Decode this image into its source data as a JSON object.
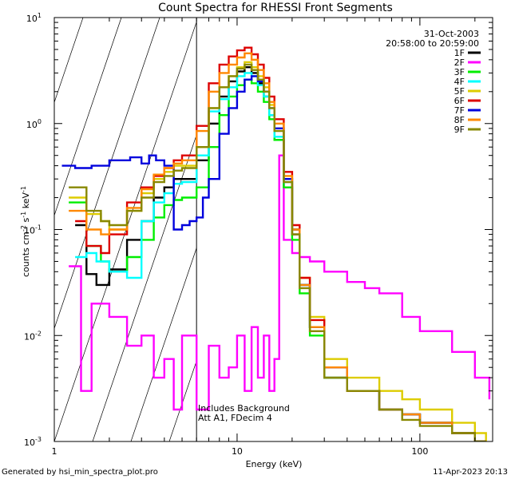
{
  "chart_data": {
    "type": "line",
    "title": "Count Spectra for RHESSI Front Segments",
    "xlabel": "Energy (keV)",
    "ylabel": "counts cm",
    "ylabel_exp1": "-2",
    "ylabel_mid": " s",
    "ylabel_exp2": "-1",
    "ylabel_end": " keV",
    "ylabel_exp3": "-1",
    "xscale": "log",
    "yscale": "log",
    "xlim": [
      1,
      250
    ],
    "ylim": [
      0.001,
      10
    ],
    "x_ticks": [
      {
        "value": 1,
        "label": "1"
      },
      {
        "value": 10,
        "label": "10"
      },
      {
        "value": 100,
        "label": "100"
      }
    ],
    "y_ticks": [
      {
        "value": 10,
        "base": "10",
        "exp": "1"
      },
      {
        "value": 1,
        "base": "10",
        "exp": "0"
      },
      {
        "value": 0.1,
        "base": "10",
        "exp": "-1"
      },
      {
        "value": 0.01,
        "base": "10",
        "exp": "-2"
      },
      {
        "value": 0.001,
        "base": "10",
        "exp": "-3"
      }
    ],
    "hatched_region": {
      "x_min": 1,
      "x_max": 6
    },
    "date": "31-Oct-2003",
    "time_range": "20:58:00 to 20:59:00",
    "annotations": [
      "Includes Background",
      "Att A1, FDecim 4"
    ],
    "legend_position": "top-right",
    "series": [
      {
        "name": "1F",
        "color": "#000000",
        "x": [
          1.3,
          1.5,
          1.7,
          2,
          2.5,
          3,
          3.5,
          4,
          4.5,
          5,
          6,
          7,
          8,
          9,
          10,
          11,
          12,
          13,
          14,
          15,
          16,
          18,
          20,
          22,
          25,
          30,
          40,
          60,
          80,
          100,
          150,
          200,
          230
        ],
        "y": [
          0.11,
          0.038,
          0.03,
          0.042,
          0.08,
          0.12,
          0.2,
          0.25,
          0.3,
          0.3,
          0.45,
          1.0,
          1.8,
          2.5,
          3.1,
          3.4,
          3.0,
          2.4,
          1.8,
          1.2,
          0.7,
          0.25,
          0.09,
          0.03,
          0.012,
          0.004,
          0.003,
          0.002,
          0.0018,
          0.0015,
          0.0012,
          0.001,
          0.001
        ]
      },
      {
        "name": "2F",
        "color": "#ff00ff",
        "x": [
          1.2,
          1.4,
          1.6,
          2,
          2.5,
          3,
          3.5,
          4,
          4.5,
          5,
          6,
          7,
          8,
          9,
          10,
          11,
          12,
          13,
          14,
          15,
          16,
          17,
          18,
          20,
          22,
          25,
          30,
          40,
          50,
          60,
          80,
          100,
          150,
          200,
          240
        ],
        "y": [
          0.045,
          0.003,
          0.02,
          0.015,
          0.008,
          0.01,
          0.004,
          0.006,
          0.002,
          0.01,
          0.002,
          0.008,
          0.004,
          0.005,
          0.01,
          0.003,
          0.012,
          0.004,
          0.01,
          0.003,
          0.006,
          0.5,
          0.08,
          0.06,
          0.055,
          0.05,
          0.04,
          0.032,
          0.028,
          0.025,
          0.015,
          0.011,
          0.007,
          0.004,
          0.0025
        ]
      },
      {
        "name": "3F",
        "color": "#00ee00",
        "x": [
          1.2,
          1.5,
          1.8,
          2,
          2.5,
          3,
          3.5,
          4,
          4.5,
          5,
          6,
          7,
          8,
          9,
          10,
          11,
          12,
          13,
          14,
          15,
          16,
          18,
          20,
          22,
          25,
          30,
          40,
          60,
          80,
          100,
          150,
          200,
          230
        ],
        "y": [
          0.18,
          0.07,
          0.05,
          0.04,
          0.055,
          0.08,
          0.13,
          0.17,
          0.19,
          0.2,
          0.25,
          0.6,
          1.2,
          1.8,
          2.3,
          2.6,
          2.4,
          2.0,
          1.6,
          1.1,
          0.7,
          0.25,
          0.08,
          0.025,
          0.01,
          0.004,
          0.003,
          0.002,
          0.0018,
          0.0015,
          0.0012,
          0.001,
          0.001
        ]
      },
      {
        "name": "4F",
        "color": "#00ffff",
        "x": [
          1.3,
          1.5,
          1.7,
          2,
          2.5,
          3,
          3.5,
          4,
          4.5,
          5,
          6,
          7,
          8,
          9,
          10,
          11,
          12,
          13,
          14,
          15,
          16,
          18,
          20,
          22,
          25,
          30,
          40,
          60,
          80,
          100,
          150,
          200,
          230
        ],
        "y": [
          0.055,
          0.06,
          0.05,
          0.04,
          0.035,
          0.12,
          0.18,
          0.22,
          0.27,
          0.28,
          0.5,
          1.3,
          1.7,
          2.2,
          2.8,
          3.0,
          2.8,
          2.3,
          1.8,
          1.2,
          0.75,
          0.28,
          0.1,
          0.03,
          0.012,
          0.005,
          0.003,
          0.002,
          0.0018,
          0.0015,
          0.0012,
          0.001,
          0.001
        ]
      },
      {
        "name": "5F",
        "color": "#ddcc00",
        "x": [
          1.2,
          1.5,
          1.8,
          2,
          2.5,
          3,
          3.5,
          4,
          4.5,
          5,
          6,
          7,
          8,
          9,
          10,
          11,
          12,
          13,
          14,
          15,
          16,
          18,
          20,
          22,
          25,
          30,
          40,
          60,
          80,
          100,
          150,
          200,
          230
        ],
        "y": [
          0.2,
          0.14,
          0.12,
          0.1,
          0.15,
          0.22,
          0.3,
          0.35,
          0.4,
          0.4,
          0.6,
          1.4,
          2.2,
          2.8,
          3.4,
          3.8,
          3.4,
          2.8,
          2.2,
          1.5,
          0.9,
          0.3,
          0.1,
          0.035,
          0.015,
          0.006,
          0.004,
          0.003,
          0.0025,
          0.002,
          0.0015,
          0.0012,
          0.001
        ]
      },
      {
        "name": "6F",
        "color": "#dd0000",
        "x": [
          1.3,
          1.5,
          1.8,
          2,
          2.5,
          3,
          3.5,
          4,
          4.5,
          5,
          6,
          7,
          8,
          9,
          10,
          11,
          12,
          13,
          14,
          15,
          16,
          18,
          20,
          22,
          25,
          30,
          40,
          60,
          80,
          100,
          150,
          200,
          230
        ],
        "y": [
          0.12,
          0.07,
          0.06,
          0.09,
          0.18,
          0.25,
          0.32,
          0.38,
          0.45,
          0.5,
          0.95,
          2.4,
          3.6,
          4.3,
          4.9,
          5.2,
          4.5,
          3.6,
          2.7,
          1.8,
          1.1,
          0.35,
          0.11,
          0.035,
          0.014,
          0.005,
          0.003,
          0.002,
          0.0018,
          0.0015,
          0.0012,
          0.001,
          0.001
        ]
      },
      {
        "name": "7F",
        "color": "#0000dd",
        "x": [
          1.1,
          1.3,
          1.6,
          2,
          2.3,
          2.6,
          3,
          3.3,
          3.6,
          4,
          4.5,
          5,
          5.5,
          6,
          6.5,
          7,
          8,
          9,
          10,
          11,
          12,
          13,
          14,
          15,
          16,
          18,
          20,
          22,
          25,
          30,
          40,
          60,
          80,
          100,
          150,
          200,
          230
        ],
        "y": [
          0.4,
          0.38,
          0.4,
          0.45,
          0.45,
          0.48,
          0.42,
          0.5,
          0.45,
          0.4,
          0.1,
          0.11,
          0.12,
          0.13,
          0.2,
          0.3,
          0.8,
          1.4,
          2.0,
          2.6,
          2.8,
          2.5,
          2.0,
          1.4,
          0.9,
          0.3,
          0.1,
          0.03,
          0.012,
          0.005,
          0.003,
          0.002,
          0.0018,
          0.0015,
          0.0012,
          0.001,
          0.001
        ]
      },
      {
        "name": "8F",
        "color": "#ff8800",
        "x": [
          1.2,
          1.5,
          1.8,
          2,
          2.5,
          3,
          3.5,
          4,
          4.5,
          5,
          6,
          7,
          8,
          9,
          10,
          11,
          12,
          13,
          14,
          15,
          16,
          18,
          20,
          22,
          25,
          30,
          40,
          60,
          80,
          100,
          150,
          200,
          230
        ],
        "y": [
          0.15,
          0.1,
          0.09,
          0.1,
          0.16,
          0.24,
          0.33,
          0.38,
          0.42,
          0.45,
          0.85,
          2.0,
          3.0,
          3.6,
          4.2,
          4.6,
          4.0,
          3.2,
          2.4,
          1.6,
          1.0,
          0.32,
          0.1,
          0.03,
          0.012,
          0.005,
          0.003,
          0.002,
          0.0018,
          0.0015,
          0.0012,
          0.001,
          0.001
        ]
      },
      {
        "name": "9F",
        "color": "#888800",
        "x": [
          1.2,
          1.5,
          1.8,
          2,
          2.5,
          3,
          3.5,
          4,
          4.5,
          5,
          6,
          7,
          8,
          9,
          10,
          11,
          12,
          13,
          14,
          15,
          16,
          18,
          20,
          22,
          25,
          30,
          40,
          60,
          80,
          100,
          150,
          200,
          230
        ],
        "y": [
          0.25,
          0.15,
          0.12,
          0.11,
          0.15,
          0.2,
          0.28,
          0.32,
          0.36,
          0.38,
          0.6,
          1.4,
          2.2,
          2.8,
          3.3,
          3.6,
          3.2,
          2.6,
          2.0,
          1.4,
          0.85,
          0.28,
          0.09,
          0.028,
          0.011,
          0.004,
          0.003,
          0.002,
          0.0016,
          0.0014,
          0.0012,
          0.001,
          0.001
        ]
      }
    ]
  },
  "footer": {
    "generated_by": "Generated by hsi_min_spectra_plot.pro",
    "timestamp": "11-Apr-2023 20:13"
  }
}
